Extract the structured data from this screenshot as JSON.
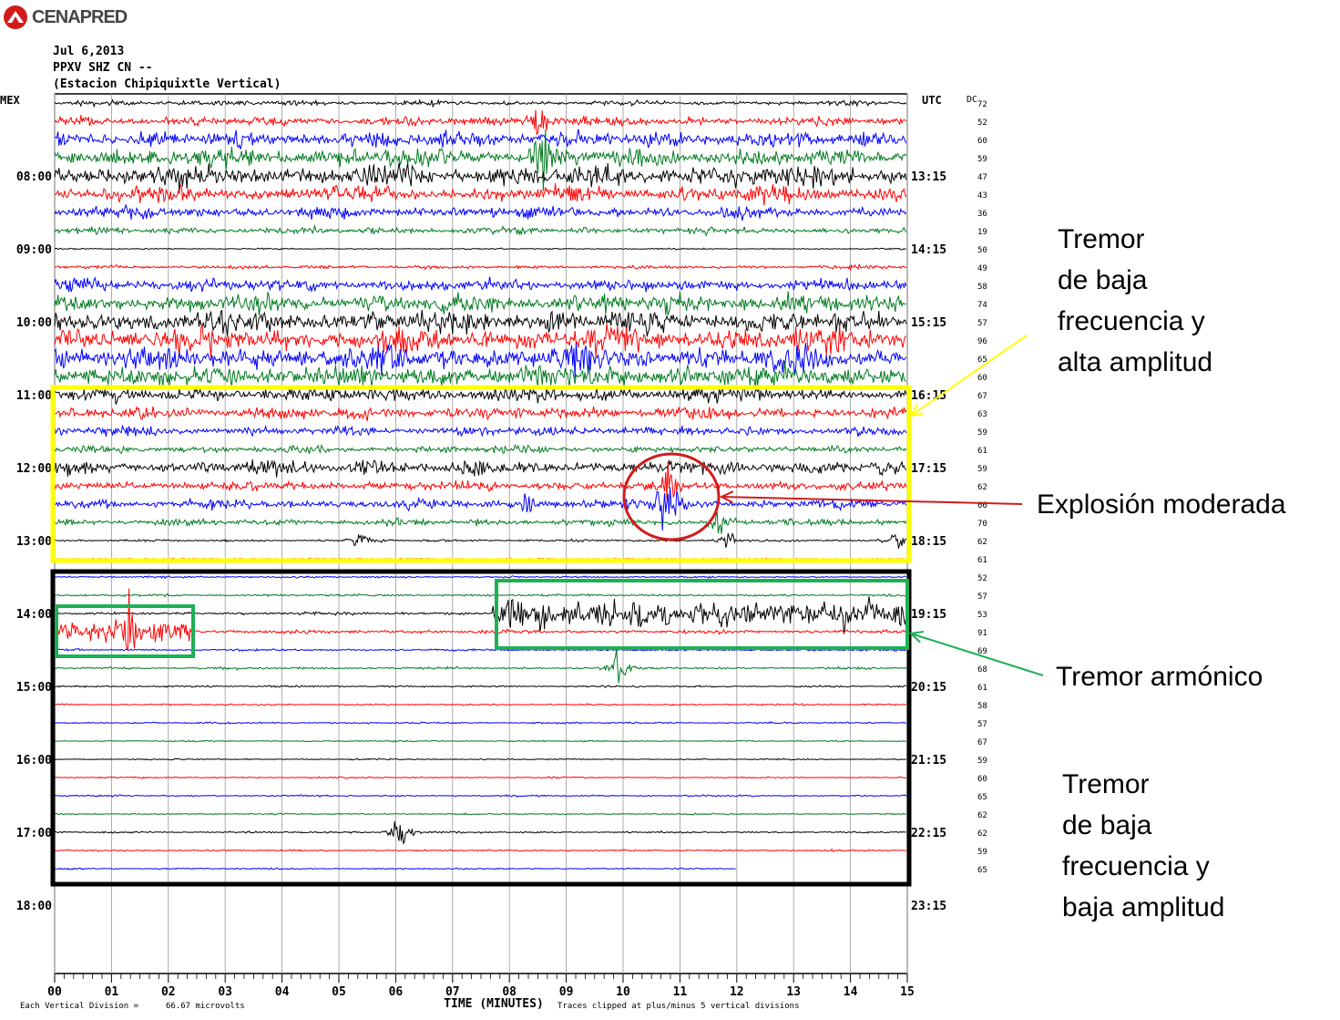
{
  "logo": {
    "text": "CENAPRED",
    "icon": "cenapred-logo-icon",
    "color": "#d01c1c"
  },
  "header": {
    "date": "Jul 6,2013",
    "station": "PPXV SHZ CN --",
    "station_name": "(Estacion Chipiquixtle Vertical)"
  },
  "axis_labels": {
    "left_tz": "MEX",
    "right_tz": "UTC",
    "dc": "DC",
    "x_title": "TIME (MINUTES)",
    "footer_left": "Each Vertical Division =",
    "footer_value": "66.67 microvolts",
    "footer_right": "Traces clipped at plus/minus 5 vertical divisions"
  },
  "annotations": {
    "high_amp_tremor": "Tremor\nde baja\nfrecuencia y\nalta amplitud",
    "explosion": "Explosión moderada",
    "harmonic_tremor": "Tremor armónico",
    "low_amp_tremor": "Tremor\nde baja\nfrecuencia y\nbaja amplitud"
  },
  "colors": {
    "trace_cycle": [
      "#000000",
      "#ff0000",
      "#0000ff",
      "#007a1f"
    ],
    "grid": "#999999",
    "yellow_box": "#ffff00",
    "black_box": "#000000",
    "green_box": "#1db054",
    "red_circle": "#d01c1c",
    "yellow_arrow": "#ffff00",
    "red_arrow": "#d01c1c",
    "green_arrow": "#1db054"
  },
  "chart_data": {
    "type": "helicorder",
    "x": {
      "ticks": [
        "00",
        "01",
        "02",
        "03",
        "04",
        "05",
        "06",
        "07",
        "08",
        "09",
        "10",
        "11",
        "12",
        "13",
        "14",
        "15"
      ],
      "range": [
        0,
        15
      ],
      "unit": "minutes"
    },
    "left_time_labels": [
      "08:00",
      "09:00",
      "10:00",
      "11:00",
      "12:00",
      "13:00",
      "14:00",
      "15:00",
      "16:00",
      "17:00",
      "18:00"
    ],
    "right_time_labels": [
      "13:15",
      "14:15",
      "15:15",
      "16:15",
      "17:15",
      "18:15",
      "19:15",
      "20:15",
      "21:15",
      "22:15",
      "23:15"
    ],
    "dc_values": [
      "72",
      "52",
      "60",
      "59",
      "47",
      "43",
      "36",
      "19",
      "50",
      "49",
      "58",
      "74",
      "57",
      "96",
      "65",
      "60",
      "67",
      "63",
      "59",
      "61",
      "59",
      "62",
      "66",
      "70",
      "62",
      "61",
      "52",
      "57",
      "53",
      "91",
      "69",
      "68",
      "61",
      "58",
      "57",
      "67",
      "59",
      "60",
      "65",
      "62",
      "62",
      "59",
      "65"
    ],
    "trace_amplitudes": [
      2,
      4,
      7,
      8,
      9,
      7,
      5,
      3,
      0.6,
      1.5,
      5,
      8,
      10,
      11,
      11,
      10,
      6,
      5,
      4,
      3,
      6,
      4,
      4,
      3,
      1,
      0.5,
      0.8,
      1,
      1.3,
      1.6,
      0.9,
      1,
      0.8,
      0.7,
      0.7,
      0.6,
      0.6,
      0.6,
      0.7,
      0.6,
      0.7,
      0.7,
      0.6
    ],
    "last_trace_end_minute": 12,
    "events": [
      {
        "trace": 1,
        "minute": 8.5,
        "amp": 20
      },
      {
        "trace": 3,
        "minute": 8.6,
        "amp": 30
      },
      {
        "trace": 20,
        "minute": 5.5,
        "amp": 20
      },
      {
        "trace": 22,
        "minute": 8.3,
        "amp": 15
      },
      {
        "trace": 22,
        "minute": 10.8,
        "amp": 60
      },
      {
        "trace": 21,
        "minute": 10.8,
        "amp": 25
      },
      {
        "trace": 23,
        "minute": 11.7,
        "amp": 15
      },
      {
        "trace": 24,
        "minute": 5.4,
        "amp": 12
      },
      {
        "trace": 24,
        "minute": 11.9,
        "amp": 15
      },
      {
        "trace": 24,
        "minute": 14.8,
        "amp": 12
      },
      {
        "trace": 29,
        "minute": 1.3,
        "amp": 25
      },
      {
        "trace": 31,
        "minute": 9.9,
        "amp": 20
      },
      {
        "trace": 40,
        "minute": 6.1,
        "amp": 22
      }
    ],
    "harmonic_windows": [
      {
        "trace": 28,
        "start": 7.7,
        "end": 15,
        "amp": 14
      },
      {
        "trace": 29,
        "start": 0,
        "end": 2.4,
        "amp": 10
      }
    ]
  }
}
